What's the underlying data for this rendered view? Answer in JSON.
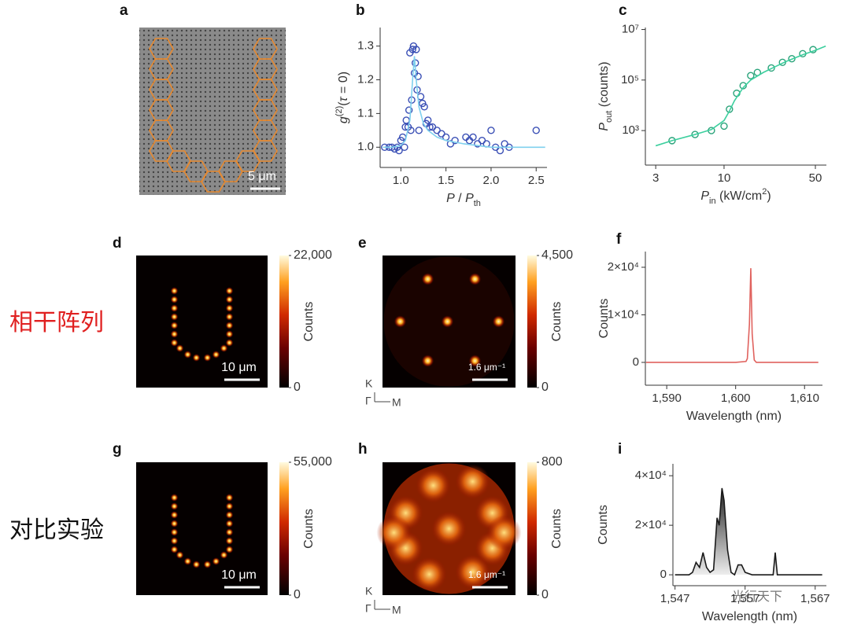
{
  "chart_data": [
    {
      "type": "scatter",
      "panel": "b",
      "xlim": [
        0.77,
        2.62
      ],
      "ylim": [
        0.94,
        1.355
      ],
      "xticks": [
        {
          "value": 1.0,
          "label": "1.0"
        },
        {
          "value": 1.5,
          "label": "1.5"
        },
        {
          "value": 2.0,
          "label": "2.0"
        },
        {
          "value": 2.5,
          "label": "2.5"
        }
      ],
      "yticks": [
        {
          "value": 1.0,
          "label": "1.0"
        },
        {
          "value": 1.1,
          "label": "1.1"
        },
        {
          "value": 1.2,
          "label": "1.2"
        },
        {
          "value": 1.3,
          "label": "1.3"
        }
      ],
      "x_label": [
        {
          "text": "P",
          "italic": true
        },
        {
          "text": " / "
        },
        {
          "text": "P",
          "italic": true
        },
        {
          "text": "th",
          "sub": true
        }
      ],
      "y_label": [
        {
          "text": "g",
          "italic": true
        },
        {
          "text": "(2)",
          "sup": true
        },
        {
          "text": "("
        },
        {
          "text": "τ",
          "italic": true
        },
        {
          "text": " = 0)"
        }
      ],
      "series": [
        {
          "marker": "circle",
          "color": "#3a4fb5",
          "x": [
            0.82,
            0.87,
            0.9,
            0.93,
            0.96,
            0.98,
            1.0,
            1.02,
            1.04,
            1.05,
            1.06,
            1.08,
            1.09,
            1.1,
            1.11,
            1.12,
            1.13,
            1.14,
            1.15,
            1.16,
            1.17,
            1.18,
            1.19,
            1.2,
            1.22,
            1.24,
            1.26,
            1.28,
            1.3,
            1.32,
            1.35,
            1.4,
            1.45,
            1.5,
            1.55,
            1.6,
            1.72,
            1.76,
            1.8,
            1.85,
            1.9,
            1.95,
            2.0,
            2.05,
            2.1,
            2.15,
            2.2,
            2.5
          ],
          "values": [
            1.0,
            1.0,
            1.0,
            0.995,
            1.0,
            0.99,
            1.02,
            1.03,
            1.0,
            1.06,
            1.08,
            1.06,
            1.11,
            1.28,
            1.05,
            1.14,
            1.29,
            1.3,
            1.22,
            1.25,
            1.29,
            1.17,
            1.21,
            1.05,
            1.15,
            1.13,
            1.12,
            1.07,
            1.08,
            1.06,
            1.06,
            1.05,
            1.04,
            1.03,
            1.01,
            1.02,
            1.03,
            1.02,
            1.03,
            1.01,
            1.02,
            1.01,
            1.05,
            1.0,
            0.99,
            1.01,
            1.0,
            1.05
          ]
        },
        {
          "marker": "line",
          "color": "#7fd0ee",
          "x": [
            0.8,
            0.9,
            1.0,
            1.05,
            1.1,
            1.13,
            1.15,
            1.17,
            1.2,
            1.25,
            1.3,
            1.4,
            1.5,
            1.7,
            2.0,
            2.6
          ],
          "values": [
            1.0,
            1.0,
            1.005,
            1.02,
            1.08,
            1.2,
            1.27,
            1.2,
            1.12,
            1.07,
            1.05,
            1.03,
            1.02,
            1.01,
            1.0,
            1.0
          ]
        }
      ]
    },
    {
      "type": "scatter",
      "panel": "c",
      "xscale": "log",
      "yscale": "log",
      "xlim": [
        2.5,
        60.7
      ],
      "ylim": [
        43,
        12000000
      ],
      "xticks": [
        3,
        10,
        50
      ],
      "yticks": [
        {
          "value": 1000,
          "label": "10³"
        },
        {
          "value": 100000,
          "label": "10⁵"
        },
        {
          "value": 10000000,
          "label": "10⁷"
        }
      ],
      "x_label": [
        {
          "text": "P",
          "italic": true
        },
        {
          "text": "in",
          "sub": true
        },
        {
          "text": " (kW/cm"
        },
        {
          "text": "2",
          "sup": true
        },
        {
          "text": ")"
        }
      ],
      "y_label": [
        {
          "text": "P",
          "italic": true
        },
        {
          "text": "out",
          "sub": true
        },
        {
          "text": " (counts)"
        }
      ],
      "series": [
        {
          "marker": "circle",
          "color": "#2aa37a",
          "x": [
            4,
            6,
            8,
            10,
            11,
            12.5,
            14,
            16,
            18,
            23,
            28,
            33,
            40,
            48
          ],
          "values": [
            400,
            700,
            1000,
            1500,
            7000,
            30000,
            60000,
            150000,
            200000,
            300000,
            500000,
            700000,
            1100000,
            1600000
          ]
        },
        {
          "marker": "line",
          "color": "#3ccf9e",
          "x": [
            3,
            4,
            6,
            8,
            10,
            11,
            12,
            14,
            16,
            20,
            25,
            30,
            40,
            50,
            60
          ],
          "values": [
            250,
            400,
            700,
            1100,
            2500,
            6000,
            15000,
            50000,
            100000,
            200000,
            350000,
            550000,
            1000000,
            1500000,
            2200000
          ]
        }
      ]
    },
    {
      "type": "line",
      "panel": "f",
      "color": "#e0625e",
      "xlim": [
        1586.9,
        1612.6
      ],
      "ylim": [
        -4800,
        23300
      ],
      "xticks": [
        {
          "value": 1590,
          "label": "1,590"
        },
        {
          "value": 1600,
          "label": "1,600"
        },
        {
          "value": 1610,
          "label": "1,610"
        }
      ],
      "yticks": [
        0,
        {
          "value": 10000,
          "label": "1×10⁴"
        },
        {
          "value": 20000,
          "label": "2×10⁴"
        }
      ],
      "x_label": [
        {
          "text": "Wavelength (nm)"
        }
      ],
      "y_label": [
        {
          "text": "Counts"
        }
      ],
      "x": [
        1587,
        1600,
        1601.5,
        1601.7,
        1602.0,
        1602.2,
        1602.4,
        1602.7,
        1603,
        1612
      ],
      "values": [
        0,
        0,
        200,
        800,
        8000,
        19800,
        6000,
        500,
        0,
        0
      ]
    },
    {
      "type": "area",
      "panel": "i",
      "color": "#1a1a1a",
      "xlim": [
        1546.7,
        1568.6
      ],
      "ylim": [
        -4400,
        44800
      ],
      "xticks": [
        {
          "value": 1547,
          "label": "1,547"
        },
        {
          "value": 1557,
          "label": "1,557"
        },
        {
          "value": 1567,
          "label": "1,567"
        }
      ],
      "yticks": [
        0,
        {
          "value": 20000,
          "label": "2×10⁴"
        },
        {
          "value": 40000,
          "label": "4×10⁴"
        }
      ],
      "x_label": [
        {
          "text": "Wavelength (nm)"
        }
      ],
      "y_label": [
        {
          "text": "Counts"
        }
      ],
      "x": [
        1547,
        1549,
        1549.5,
        1550,
        1550.5,
        1551,
        1551.5,
        1552,
        1552.5,
        1553,
        1553.3,
        1553.7,
        1554,
        1554.5,
        1555,
        1555.5,
        1556,
        1556.5,
        1557,
        1558,
        1561,
        1561.3,
        1561.6,
        1563,
        1568
      ],
      "values": [
        0,
        0,
        1000,
        5000,
        3000,
        9000,
        3000,
        1000,
        2000,
        23000,
        20000,
        35000,
        30000,
        10000,
        1000,
        0,
        4000,
        4000,
        1000,
        0,
        0,
        9000,
        0,
        0,
        0
      ]
    }
  ],
  "images": [
    {
      "panel": "a",
      "scale_bar": "5 μm"
    },
    {
      "panel": "d",
      "scale_bar": "10 μm",
      "colorbar": {
        "clim": [
          0,
          22000
        ],
        "ticks": [
          {
            "value": 22000,
            "label": "22,000"
          },
          0
        ],
        "label": "Counts"
      }
    },
    {
      "panel": "e",
      "scale_bar": "1.6 μm⁻¹",
      "colorbar": {
        "clim": [
          0,
          4500
        ],
        "ticks": [
          {
            "value": 4500,
            "label": "4,500"
          },
          0
        ],
        "label": "Counts"
      },
      "axes_labels": [
        "K",
        "Γ",
        "M"
      ]
    },
    {
      "panel": "g",
      "scale_bar": "10 μm",
      "colorbar": {
        "clim": [
          0,
          55000
        ],
        "ticks": [
          {
            "value": 55000,
            "label": "55,000"
          },
          0
        ],
        "label": "Counts"
      }
    },
    {
      "panel": "h",
      "scale_bar": "1.6 μm⁻¹",
      "colorbar": {
        "clim": [
          0,
          800
        ],
        "ticks": [
          800,
          0
        ],
        "label": "Counts"
      },
      "axes_labels": [
        "K",
        "Γ",
        "M"
      ]
    }
  ],
  "row_labels": [
    "相干阵列",
    "对比实验"
  ],
  "watermark": "光行天下"
}
